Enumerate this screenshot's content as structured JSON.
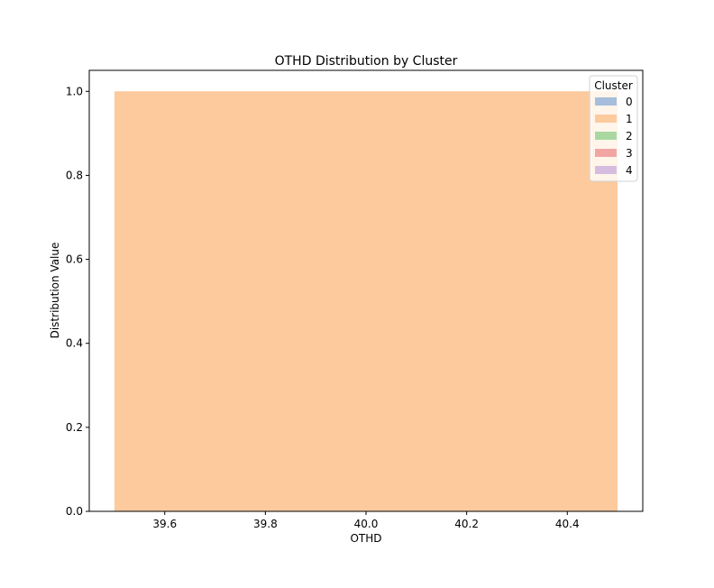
{
  "chart_data": {
    "type": "area",
    "title": "OTHD Distribution by Cluster",
    "xlabel": "OTHD",
    "ylabel": "Distribution Value",
    "xlim": [
      39.45,
      40.55
    ],
    "ylim": [
      0.0,
      1.05
    ],
    "x_ticks": [
      39.6,
      39.8,
      40.0,
      40.2,
      40.4
    ],
    "x_tick_labels": [
      "39.6",
      "39.8",
      "40.0",
      "40.2",
      "40.4"
    ],
    "y_ticks": [
      0.0,
      0.2,
      0.4,
      0.6,
      0.8,
      1.0
    ],
    "y_tick_labels": [
      "0.0",
      "0.2",
      "0.4",
      "0.6",
      "0.8",
      "1.0"
    ],
    "grid": false,
    "legend": {
      "title": "Cluster",
      "placement": "top-right",
      "entries": [
        {
          "label": "0",
          "color": "#a6bddb"
        },
        {
          "label": "1",
          "color": "#fdca9d"
        },
        {
          "label": "2",
          "color": "#a8d8a0"
        },
        {
          "label": "3",
          "color": "#f2a6a4"
        },
        {
          "label": "4",
          "color": "#d6bde0"
        }
      ]
    },
    "series": [
      {
        "name": "1",
        "color": "#fdca9d",
        "x": [
          39.5,
          40.5
        ],
        "y": [
          1.0,
          1.0
        ]
      }
    ]
  }
}
